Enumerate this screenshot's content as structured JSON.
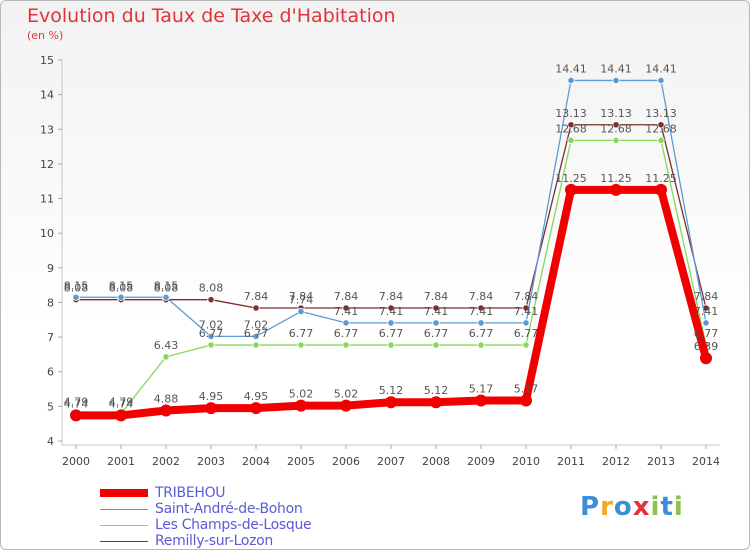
{
  "header": {
    "title": "Evolution du Taux de Taxe d'Habitation",
    "unit": "(en %)"
  },
  "logo": {
    "text": "Proxiti",
    "letters": [
      "P",
      "r",
      "o",
      "x",
      "i",
      "t",
      "i"
    ],
    "colors": [
      "#3a8fd6",
      "#f5a623",
      "#3a8fd6",
      "#e2333a",
      "#8bc34a",
      "#3a8fd6",
      "#8bc34a"
    ]
  },
  "chart_data": {
    "type": "line",
    "x": [
      "2000",
      "2001",
      "2002",
      "2003",
      "2004",
      "2005",
      "2006",
      "2007",
      "2008",
      "2009",
      "2010",
      "2011",
      "2012",
      "2013",
      "2014"
    ],
    "ylim": [
      4,
      15
    ],
    "yticks": [
      "4",
      "5",
      "6",
      "7",
      "8",
      "9",
      "10",
      "11",
      "12",
      "13",
      "14",
      "15"
    ],
    "grid": false,
    "legend_position": "bottom-left",
    "series": [
      {
        "name": "Remilly-sur-Lozon",
        "color": "#7a3030",
        "values": [
          8.08,
          8.08,
          8.08,
          8.08,
          7.84,
          7.84,
          7.84,
          7.84,
          7.84,
          7.84,
          7.84,
          13.13,
          13.13,
          13.13,
          7.84
        ]
      },
      {
        "name": "Les Champs-de-Losque",
        "color": "#88d858",
        "values": [
          4.79,
          4.79,
          6.43,
          6.77,
          6.77,
          6.77,
          6.77,
          6.77,
          6.77,
          6.77,
          6.77,
          12.68,
          12.68,
          12.68,
          6.77
        ]
      },
      {
        "name": "Saint-André-de-Bohon",
        "color": "#5b9bd5",
        "values": [
          8.15,
          8.15,
          8.15,
          7.02,
          7.02,
          7.74,
          7.41,
          7.41,
          7.41,
          7.41,
          7.41,
          14.41,
          14.41,
          14.41,
          7.41
        ]
      },
      {
        "name": "TRIBEHOU",
        "color": "#f00000",
        "values": [
          4.74,
          4.74,
          4.88,
          4.95,
          4.95,
          5.02,
          5.02,
          5.12,
          5.12,
          5.17,
          5.17,
          11.25,
          11.25,
          11.25,
          6.39
        ]
      }
    ],
    "labels": {
      "Remilly-sur-Lozon": [
        "8.08",
        "8.08",
        "8.08",
        "8.08",
        "7.84",
        "7.84",
        "7.84",
        "7.84",
        "7.84",
        "7.84",
        "7.84",
        "13.13",
        "13.13",
        "13.13",
        "7.84"
      ],
      "Les Champs-de-Losque": [
        "4.79",
        "4.79",
        "6.43",
        "6.77",
        "6.77",
        "6.77",
        "6.77",
        "6.77",
        "6.77",
        "6.77",
        "6.77",
        "12.68",
        "12.68",
        "12.68",
        "6.77"
      ],
      "Saint-André-de-Bohon": [
        "8.15",
        "8.15",
        "8.15",
        "7.02",
        "7.02",
        "7.74",
        "7.41",
        "7.41",
        "7.41",
        "7.41",
        "7.41",
        "14.41",
        "14.41",
        "14.41",
        "7.41"
      ],
      "TRIBEHOU": [
        "4.74",
        "4.74",
        "4.88",
        "4.95",
        "4.95",
        "5.02",
        "5.02",
        "5.12",
        "5.12",
        "5.17",
        "5.17",
        "11.25",
        "11.25",
        "11.25",
        "6.39"
      ]
    }
  },
  "legend": [
    {
      "label": "TRIBEHOU",
      "color": "#f00000",
      "thick": true
    },
    {
      "label": "Saint-André-de-Bohon",
      "color": "#5b9bd5",
      "thick": false
    },
    {
      "label": "Les Champs-de-Losque",
      "color": "#88d858",
      "thick": false
    },
    {
      "label": "Remilly-sur-Lozon",
      "color": "#7a3030",
      "thick": false
    }
  ]
}
